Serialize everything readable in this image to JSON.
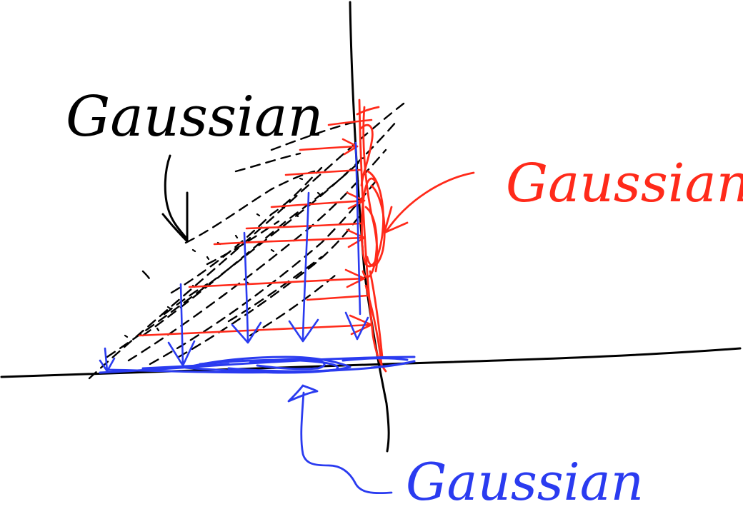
{
  "labels": {
    "joint": "Gaussian",
    "conditional": "Gaussian",
    "marginal": "Gaussian"
  },
  "colors": {
    "ink_black": "#000000",
    "ink_red": "#ff2a1a",
    "ink_blue": "#2a3bf0",
    "background": "#ffffff"
  }
}
